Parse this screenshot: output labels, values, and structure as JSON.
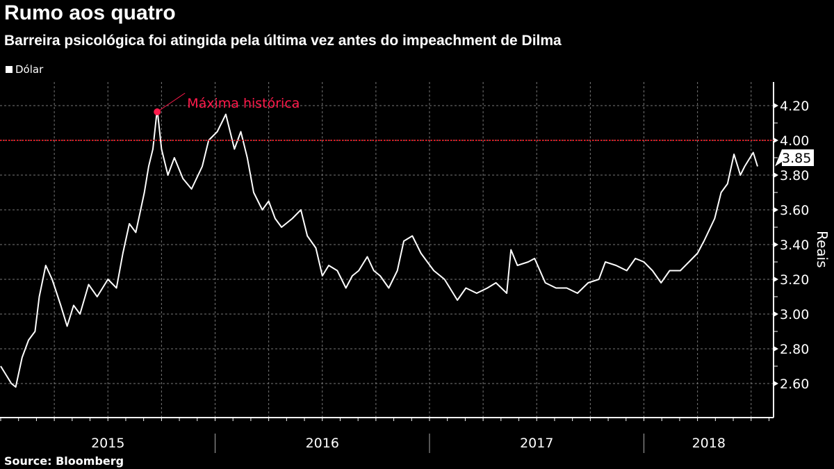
{
  "header": {
    "title": "Rumo aos quatro",
    "subtitle": "Barreira psicológica foi atingida pela última vez antes do impeachment de Dilma"
  },
  "legend": {
    "label": "Dólar"
  },
  "footer": {
    "source": "Source:  Bloomberg"
  },
  "colors": {
    "line": "#ffffff",
    "annotation": "#ff1a4b",
    "threshold": "#e0151f",
    "grid": "#777777"
  },
  "chart_data": {
    "type": "line",
    "title": "Rumo aos quatro",
    "ylabel": "Reais",
    "ylim": [
      2.4,
      4.36
    ],
    "yticks": [
      2.6,
      2.8,
      3.0,
      3.2,
      3.4,
      3.6,
      3.8,
      4.0,
      4.2
    ],
    "ytick_labels": [
      "2.60",
      "2.80",
      "3.00",
      "3.20",
      "3.40",
      "3.60",
      "3.80",
      "4.00",
      "4.20"
    ],
    "xlim": [
      2015.0,
      2018.61
    ],
    "xtick_labels": [
      "2015",
      "2016",
      "2017",
      "2018"
    ],
    "grid": true,
    "legend_position": "top-left",
    "threshold": {
      "value": 4.0
    },
    "annotation": {
      "text": "Máxima histórica",
      "x": 2015.73,
      "y": 4.18
    },
    "last_value_label": "3.85",
    "last_value": 3.85,
    "series": [
      {
        "name": "Dólar",
        "x": [
          2015.0,
          2015.05,
          2015.07,
          2015.1,
          2015.13,
          2015.16,
          2015.18,
          2015.21,
          2015.24,
          2015.28,
          2015.31,
          2015.34,
          2015.37,
          2015.41,
          2015.45,
          2015.5,
          2015.54,
          2015.57,
          2015.6,
          2015.63,
          2015.67,
          2015.69,
          2015.71,
          2015.73,
          2015.75,
          2015.78,
          2015.81,
          2015.85,
          2015.89,
          2015.94,
          2015.97,
          2016.01,
          2016.03,
          2016.05,
          2016.09,
          2016.12,
          2016.15,
          2016.18,
          2016.22,
          2016.25,
          2016.28,
          2016.31,
          2016.36,
          2016.4,
          2016.43,
          2016.47,
          2016.5,
          2016.53,
          2016.57,
          2016.61,
          2016.64,
          2016.67,
          2016.71,
          2016.74,
          2016.77,
          2016.81,
          2016.85,
          2016.88,
          2016.92,
          2016.96,
          2016.99,
          2017.02,
          2017.07,
          2017.13,
          2017.17,
          2017.22,
          2017.27,
          2017.31,
          2017.36,
          2017.38,
          2017.41,
          2017.46,
          2017.49,
          2017.54,
          2017.59,
          2017.64,
          2017.69,
          2017.74,
          2017.79,
          2017.82,
          2017.87,
          2017.92,
          2017.96,
          2018.0,
          2018.04,
          2018.08,
          2018.12,
          2018.17,
          2018.21,
          2018.25,
          2018.28,
          2018.33,
          2018.36,
          2018.39,
          2018.42,
          2018.45,
          2018.47,
          2018.51,
          2018.53
        ],
        "values": [
          2.7,
          2.6,
          2.58,
          2.75,
          2.85,
          2.9,
          3.1,
          3.28,
          3.2,
          3.05,
          2.93,
          3.05,
          3.0,
          3.17,
          3.1,
          3.2,
          3.15,
          3.35,
          3.52,
          3.47,
          3.7,
          3.85,
          3.95,
          4.18,
          3.95,
          3.8,
          3.9,
          3.78,
          3.72,
          3.85,
          4.0,
          4.05,
          4.1,
          4.15,
          3.95,
          4.05,
          3.9,
          3.7,
          3.6,
          3.65,
          3.55,
          3.5,
          3.55,
          3.6,
          3.45,
          3.38,
          3.22,
          3.28,
          3.25,
          3.15,
          3.22,
          3.25,
          3.33,
          3.25,
          3.22,
          3.15,
          3.25,
          3.42,
          3.45,
          3.35,
          3.3,
          3.25,
          3.2,
          3.08,
          3.15,
          3.12,
          3.15,
          3.18,
          3.12,
          3.37,
          3.28,
          3.3,
          3.32,
          3.18,
          3.15,
          3.15,
          3.12,
          3.18,
          3.2,
          3.3,
          3.28,
          3.25,
          3.32,
          3.3,
          3.25,
          3.18,
          3.25,
          3.25,
          3.3,
          3.35,
          3.42,
          3.55,
          3.7,
          3.75,
          3.92,
          3.8,
          3.85,
          3.93,
          3.85
        ]
      }
    ]
  }
}
